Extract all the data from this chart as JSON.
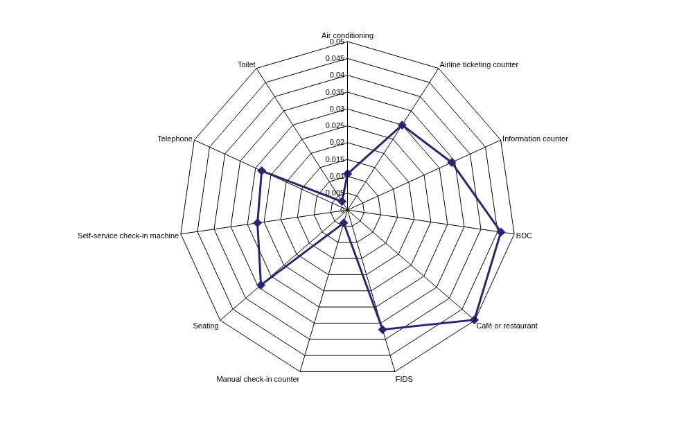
{
  "chart_data": {
    "type": "radar",
    "categories": [
      "Air conditioning",
      "Airline ticketing counter",
      "Information counter",
      "BDC",
      "Café or restaurant",
      "FIDS",
      "Manual check-in counter",
      "Seating",
      "Self-service check-in machine",
      "Telephone",
      "Toilet"
    ],
    "series": [
      {
        "color": "#262673",
        "values": [
          0.0107,
          0.03,
          0.034,
          0.046,
          0.0498,
          0.037,
          0.004,
          0.034,
          0.027,
          0.028,
          0.003
        ]
      }
    ],
    "ylim": [
      0,
      0.05
    ],
    "yticks": [
      0,
      0.005,
      0.01,
      0.015,
      0.02,
      0.025,
      0.03,
      0.035,
      0.04,
      0.045,
      0.05
    ],
    "marker": "diamond",
    "line_style": "solid",
    "grid": true,
    "legend": false
  }
}
